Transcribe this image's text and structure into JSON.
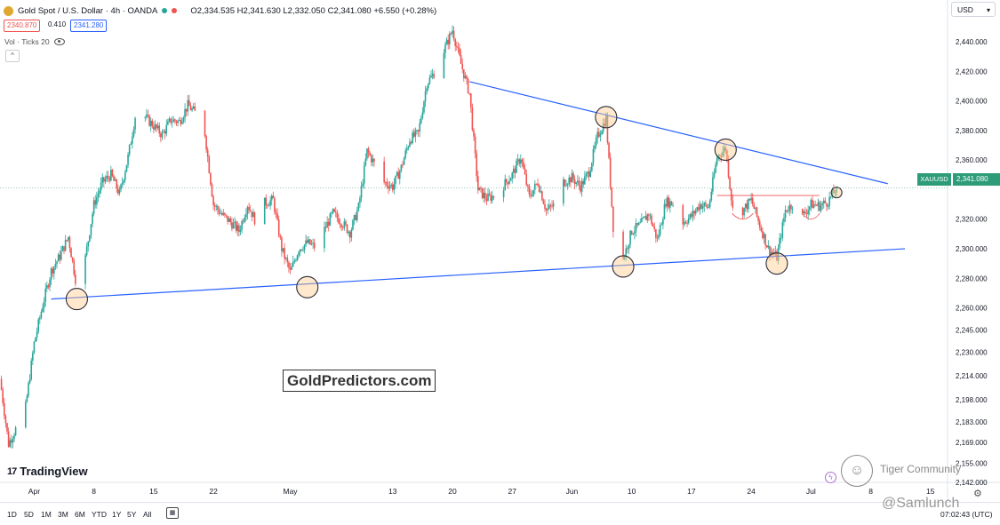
{
  "header": {
    "title": "Gold Spot / U.S. Dollar · 4h · OANDA",
    "ohlc": "O2,334.535  H2,341.630  L2,332.050  C2,341.080  +6.550 (+0.28%)",
    "bid": "2340.870",
    "spread": "0.410",
    "ask": "2341.280",
    "volume_label": "Vol · Ticks 20",
    "collapse_icon": "chevron-up-icon",
    "collapse_glyph": "^"
  },
  "currency": "USD",
  "watermark": "GoldPredictors.com",
  "branding": {
    "logo_mark": "17",
    "name": "TradingView"
  },
  "price_tag": {
    "symbol": "XAUUSD",
    "price": "2,341.080"
  },
  "bottom_bar": {
    "ranges": [
      "1D",
      "5D",
      "1M",
      "3M",
      "6M",
      "YTD",
      "1Y",
      "5Y",
      "All"
    ],
    "calendar_icon": "calendar-icon",
    "calendar_glyph": "▦",
    "clock": "07:02:43 (UTC)"
  },
  "overlay": {
    "tiger_glyph": "☺",
    "tiger_text": "Tiger Community",
    "author": "@Samlunch",
    "bolt_glyph": "ϟ",
    "settings_glyph": "⚙"
  },
  "colors": {
    "up": "#26a69a",
    "down": "#ef5350",
    "trendline": "#2962ff",
    "accent": "#2e9c78"
  },
  "chart_data": {
    "type": "candlestick",
    "symbol": "XAUUSD",
    "timeframe": "4h",
    "ylim": [
      2142,
      2455
    ],
    "y_ticks": [
      {
        "v": 2440,
        "label": "2,440.000"
      },
      {
        "v": 2420,
        "label": "2,420.000"
      },
      {
        "v": 2400,
        "label": "2,400.000"
      },
      {
        "v": 2380,
        "label": "2,380.000"
      },
      {
        "v": 2360,
        "label": "2,360.000"
      },
      {
        "v": 2320,
        "label": "2,320.000"
      },
      {
        "v": 2300,
        "label": "2,300.000"
      },
      {
        "v": 2280,
        "label": "2,280.000"
      },
      {
        "v": 2260,
        "label": "2,260.000"
      },
      {
        "v": 2245,
        "label": "2,245.000"
      },
      {
        "v": 2230,
        "label": "2,230.000"
      },
      {
        "v": 2214,
        "label": "2,214.000"
      },
      {
        "v": 2198,
        "label": "2,198.000"
      },
      {
        "v": 2183,
        "label": "2,183.000"
      },
      {
        "v": 2169,
        "label": "2,169.000"
      },
      {
        "v": 2155,
        "label": "2,155.000"
      },
      {
        "v": 2142,
        "label": "2,142.000"
      }
    ],
    "x_domain": [
      "2024-03-28",
      "2024-07-17"
    ],
    "x_ticks": [
      {
        "date": "2024-04-01",
        "label": "Apr"
      },
      {
        "date": "2024-04-08",
        "label": "8"
      },
      {
        "date": "2024-04-15",
        "label": "15"
      },
      {
        "date": "2024-04-22",
        "label": "22"
      },
      {
        "date": "2024-05-01",
        "label": "May"
      },
      {
        "date": "2024-05-13",
        "label": "13"
      },
      {
        "date": "2024-05-20",
        "label": "20"
      },
      {
        "date": "2024-05-27",
        "label": "27"
      },
      {
        "date": "2024-06-03",
        "label": "Jun"
      },
      {
        "date": "2024-06-10",
        "label": "10"
      },
      {
        "date": "2024-06-17",
        "label": "17"
      },
      {
        "date": "2024-06-24",
        "label": "24"
      },
      {
        "date": "2024-07-01",
        "label": "Jul"
      },
      {
        "date": "2024-07-08",
        "label": "8"
      },
      {
        "date": "2024-07-15",
        "label": "15"
      }
    ],
    "last_price": 2341.08,
    "price_path": [
      [
        "2024-03-28",
        2212
      ],
      [
        "2024-03-29",
        2168
      ],
      [
        "2024-03-30",
        2180
      ],
      [
        "2024-03-31",
        2193
      ],
      [
        "2024-04-01",
        2236
      ],
      [
        "2024-04-02",
        2262
      ],
      [
        "2024-04-03",
        2285
      ],
      [
        "2024-04-04",
        2295
      ],
      [
        "2024-04-05",
        2308
      ],
      [
        "2024-04-06",
        2274
      ],
      [
        "2024-04-07",
        2294
      ],
      [
        "2024-04-08",
        2330
      ],
      [
        "2024-04-09",
        2345
      ],
      [
        "2024-04-10",
        2350
      ],
      [
        "2024-04-11",
        2337
      ],
      [
        "2024-04-12",
        2362
      ],
      [
        "2024-04-13",
        2395
      ],
      [
        "2024-04-15",
        2383
      ],
      [
        "2024-04-16",
        2377
      ],
      [
        "2024-04-17",
        2387
      ],
      [
        "2024-04-18",
        2386
      ],
      [
        "2024-04-19",
        2397
      ],
      [
        "2024-04-20",
        2391
      ],
      [
        "2024-04-21",
        2378
      ],
      [
        "2024-04-22",
        2330
      ],
      [
        "2024-04-23",
        2323
      ],
      [
        "2024-04-24",
        2318
      ],
      [
        "2024-04-25",
        2312
      ],
      [
        "2024-04-26",
        2330
      ],
      [
        "2024-04-27",
        2318
      ],
      [
        "2024-04-28",
        2331
      ],
      [
        "2024-04-29",
        2333
      ],
      [
        "2024-04-30",
        2300
      ],
      [
        "2024-05-01",
        2284
      ],
      [
        "2024-05-02",
        2300
      ],
      [
        "2024-05-03",
        2304
      ],
      [
        "2024-05-04",
        2301
      ],
      [
        "2024-05-05",
        2313
      ],
      [
        "2024-05-06",
        2324
      ],
      [
        "2024-05-07",
        2318
      ],
      [
        "2024-05-08",
        2311
      ],
      [
        "2024-05-09",
        2328
      ],
      [
        "2024-05-10",
        2366
      ],
      [
        "2024-05-11",
        2356
      ],
      [
        "2024-05-12",
        2345
      ],
      [
        "2024-05-13",
        2342
      ],
      [
        "2024-05-14",
        2355
      ],
      [
        "2024-05-15",
        2374
      ],
      [
        "2024-05-16",
        2378
      ],
      [
        "2024-05-17",
        2412
      ],
      [
        "2024-05-18",
        2420
      ],
      [
        "2024-05-20",
        2448
      ],
      [
        "2024-05-21",
        2425
      ],
      [
        "2024-05-22",
        2405
      ],
      [
        "2024-05-23",
        2340
      ],
      [
        "2024-05-24",
        2334
      ],
      [
        "2024-05-25",
        2336
      ],
      [
        "2024-05-27",
        2350
      ],
      [
        "2024-05-28",
        2362
      ],
      [
        "2024-05-29",
        2335
      ],
      [
        "2024-05-30",
        2345
      ],
      [
        "2024-05-31",
        2326
      ],
      [
        "2024-06-01",
        2330
      ],
      [
        "2024-06-02",
        2345
      ],
      [
        "2024-06-03",
        2348
      ],
      [
        "2024-06-04",
        2342
      ],
      [
        "2024-06-05",
        2352
      ],
      [
        "2024-06-06",
        2376
      ],
      [
        "2024-06-07",
        2388
      ],
      [
        "2024-06-08",
        2300
      ],
      [
        "2024-06-09",
        2293
      ],
      [
        "2024-06-10",
        2312
      ],
      [
        "2024-06-11",
        2316
      ],
      [
        "2024-06-12",
        2324
      ],
      [
        "2024-06-13",
        2306
      ],
      [
        "2024-06-14",
        2332
      ],
      [
        "2024-06-15",
        2330
      ],
      [
        "2024-06-16",
        2318
      ],
      [
        "2024-06-17",
        2322
      ],
      [
        "2024-06-18",
        2330
      ],
      [
        "2024-06-19",
        2328
      ],
      [
        "2024-06-20",
        2362
      ],
      [
        "2024-06-21",
        2368
      ],
      [
        "2024-06-22",
        2318
      ],
      [
        "2024-06-23",
        2326
      ],
      [
        "2024-06-24",
        2333
      ],
      [
        "2024-06-25",
        2316
      ],
      [
        "2024-06-26",
        2300
      ],
      [
        "2024-06-27",
        2294
      ],
      [
        "2024-06-28",
        2326
      ],
      [
        "2024-06-29",
        2331
      ],
      [
        "2024-06-30",
        2322
      ],
      [
        "2024-07-01",
        2330
      ],
      [
        "2024-07-02",
        2329
      ],
      [
        "2024-07-03",
        2332
      ],
      [
        "2024-07-04",
        2341.08
      ]
    ],
    "trendlines": [
      {
        "name": "resistance",
        "from": [
          "2024-05-22",
          2413
        ],
        "to": [
          "2024-07-10",
          2344
        ]
      },
      {
        "name": "support",
        "from": [
          "2024-04-03",
          2266
        ],
        "to": [
          "2024-07-12",
          2300
        ]
      }
    ],
    "horizontal_levels": [
      {
        "name": "neckline",
        "price": 2336,
        "from": "2024-06-20",
        "to": "2024-07-02"
      },
      {
        "name": "current-price",
        "price": 2341.08
      }
    ],
    "highlight_circles": [
      [
        "2024-04-06",
        2266
      ],
      [
        "2024-05-03",
        2274
      ],
      [
        "2024-06-07",
        2389
      ],
      [
        "2024-06-09",
        2288
      ],
      [
        "2024-06-21",
        2367
      ],
      [
        "2024-06-27",
        2290
      ],
      [
        "2024-07-04",
        2338
      ]
    ]
  }
}
